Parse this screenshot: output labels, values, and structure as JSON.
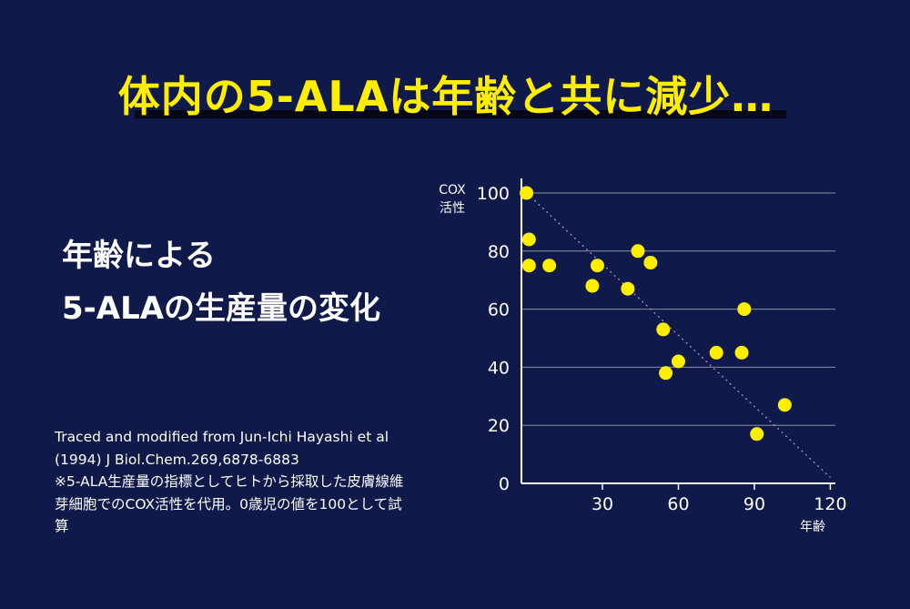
{
  "headline": "体内の5-ALAは年齢と共に減少…",
  "subtitle": {
    "line1": "年齢による",
    "line2": "5-ALAの生産量の変化"
  },
  "source_lines": [
    "Traced and modified from Jun-Ichi Hayashi et al",
    "(1994) J Biol.Chem.269,6878-6883",
    "※5-ALA生産量の指標としてヒトから採取した皮膚線維",
    "芽細胞でのCOX活性を代用。0歳児の値を100として試",
    "算"
  ],
  "colors": {
    "background": "#0f1a4a",
    "headline": "#ffee00",
    "points": "#ffee00",
    "gridlines": "#8a8fa8"
  },
  "chart_data": {
    "type": "scatter",
    "ylabel_line1": "COX",
    "ylabel_line2": "活性",
    "xlabel": "年齢",
    "xlim": [
      -2,
      122
    ],
    "ylim": [
      0,
      105
    ],
    "x_ticks": [
      30,
      60,
      90,
      120
    ],
    "y_ticks": [
      0,
      20,
      40,
      60,
      80,
      100
    ],
    "grid": "horizontal",
    "trendline": {
      "style": "dotted",
      "from": [
        0,
        100
      ],
      "to": [
        120,
        2
      ]
    },
    "points": [
      {
        "x": 0,
        "y": 100
      },
      {
        "x": 1,
        "y": 84
      },
      {
        "x": 1,
        "y": 75
      },
      {
        "x": 9,
        "y": 75
      },
      {
        "x": 26,
        "y": 68
      },
      {
        "x": 28,
        "y": 75
      },
      {
        "x": 40,
        "y": 67
      },
      {
        "x": 44,
        "y": 80
      },
      {
        "x": 49,
        "y": 76
      },
      {
        "x": 54,
        "y": 53
      },
      {
        "x": 55,
        "y": 38
      },
      {
        "x": 60,
        "y": 42
      },
      {
        "x": 75,
        "y": 45
      },
      {
        "x": 85,
        "y": 45
      },
      {
        "x": 86,
        "y": 60
      },
      {
        "x": 91,
        "y": 17
      },
      {
        "x": 102,
        "y": 27
      }
    ]
  }
}
